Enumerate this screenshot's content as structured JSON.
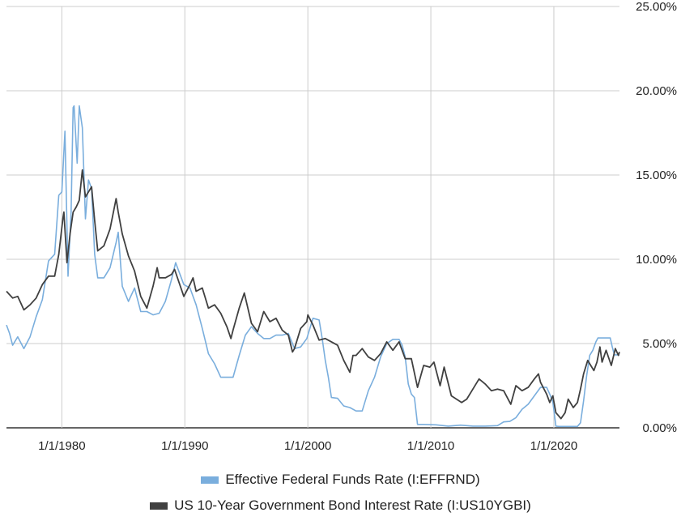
{
  "chart_data": {
    "type": "line",
    "x_range": [
      "1975-07",
      "2025-05"
    ],
    "x_ticks": [
      "1/1/1980",
      "1/1/1990",
      "1/1/2000",
      "1/1/2010",
      "1/1/2020"
    ],
    "y_ticks": [
      "0.00%",
      "5.00%",
      "10.00%",
      "15.00%",
      "20.00%",
      "25.00%"
    ],
    "ylim": [
      0,
      25
    ],
    "y_axis_position": "right",
    "grid": true,
    "legend": "bottom",
    "series": [
      {
        "name": "Effective Federal Funds Rate (I:EFFRND)",
        "color": "#7aaedd",
        "points": [
          [
            "1975-07",
            6.1
          ],
          [
            "1975-10",
            5.6
          ],
          [
            "1976-01",
            4.9
          ],
          [
            "1976-06",
            5.4
          ],
          [
            "1976-12",
            4.7
          ],
          [
            "1977-06",
            5.4
          ],
          [
            "1977-12",
            6.6
          ],
          [
            "1978-06",
            7.6
          ],
          [
            "1978-12",
            9.9
          ],
          [
            "1979-06",
            10.3
          ],
          [
            "1979-10",
            13.8
          ],
          [
            "1980-01",
            14.0
          ],
          [
            "1980-04",
            17.6
          ],
          [
            "1980-07",
            9.0
          ],
          [
            "1980-10",
            12.8
          ],
          [
            "1980-12",
            19.0
          ],
          [
            "1981-01",
            19.1
          ],
          [
            "1981-04",
            15.7
          ],
          [
            "1981-06",
            19.1
          ],
          [
            "1981-09",
            17.8
          ],
          [
            "1981-12",
            12.4
          ],
          [
            "1982-03",
            14.7
          ],
          [
            "1982-06",
            14.2
          ],
          [
            "1982-09",
            10.3
          ],
          [
            "1982-12",
            8.9
          ],
          [
            "1983-06",
            8.9
          ],
          [
            "1983-12",
            9.5
          ],
          [
            "1984-06",
            11.0
          ],
          [
            "1984-08",
            11.6
          ],
          [
            "1984-12",
            8.4
          ],
          [
            "1985-06",
            7.5
          ],
          [
            "1985-12",
            8.3
          ],
          [
            "1986-06",
            6.9
          ],
          [
            "1986-12",
            6.9
          ],
          [
            "1987-06",
            6.7
          ],
          [
            "1987-12",
            6.8
          ],
          [
            "1988-06",
            7.5
          ],
          [
            "1988-12",
            8.8
          ],
          [
            "1989-04",
            9.8
          ],
          [
            "1989-12",
            8.5
          ],
          [
            "1990-06",
            8.3
          ],
          [
            "1990-12",
            7.3
          ],
          [
            "1991-06",
            5.9
          ],
          [
            "1991-12",
            4.4
          ],
          [
            "1992-06",
            3.8
          ],
          [
            "1992-12",
            3.0
          ],
          [
            "1993-06",
            3.0
          ],
          [
            "1993-12",
            3.0
          ],
          [
            "1994-06",
            4.3
          ],
          [
            "1994-12",
            5.5
          ],
          [
            "1995-06",
            6.0
          ],
          [
            "1995-12",
            5.6
          ],
          [
            "1996-06",
            5.3
          ],
          [
            "1996-12",
            5.3
          ],
          [
            "1997-06",
            5.5
          ],
          [
            "1997-12",
            5.5
          ],
          [
            "1998-06",
            5.6
          ],
          [
            "1998-12",
            4.7
          ],
          [
            "1999-06",
            4.8
          ],
          [
            "1999-12",
            5.3
          ],
          [
            "2000-06",
            6.5
          ],
          [
            "2000-12",
            6.4
          ],
          [
            "2001-03",
            5.3
          ],
          [
            "2001-06",
            4.0
          ],
          [
            "2001-09",
            3.0
          ],
          [
            "2001-12",
            1.8
          ],
          [
            "2002-06",
            1.75
          ],
          [
            "2002-12",
            1.3
          ],
          [
            "2003-06",
            1.2
          ],
          [
            "2003-12",
            1.0
          ],
          [
            "2004-06",
            1.0
          ],
          [
            "2004-12",
            2.2
          ],
          [
            "2005-06",
            3.0
          ],
          [
            "2005-12",
            4.2
          ],
          [
            "2006-06",
            5.0
          ],
          [
            "2006-12",
            5.25
          ],
          [
            "2007-06",
            5.25
          ],
          [
            "2007-09",
            4.9
          ],
          [
            "2007-12",
            4.2
          ],
          [
            "2008-03",
            2.6
          ],
          [
            "2008-06",
            2.0
          ],
          [
            "2008-09",
            1.8
          ],
          [
            "2008-12",
            0.2
          ],
          [
            "2009-06",
            0.2
          ],
          [
            "2010-06",
            0.18
          ],
          [
            "2011-06",
            0.1
          ],
          [
            "2012-06",
            0.16
          ],
          [
            "2013-06",
            0.1
          ],
          [
            "2014-06",
            0.1
          ],
          [
            "2015-06",
            0.13
          ],
          [
            "2015-12",
            0.35
          ],
          [
            "2016-06",
            0.38
          ],
          [
            "2016-12",
            0.6
          ],
          [
            "2017-06",
            1.1
          ],
          [
            "2017-12",
            1.4
          ],
          [
            "2018-06",
            1.9
          ],
          [
            "2018-12",
            2.4
          ],
          [
            "2019-06",
            2.4
          ],
          [
            "2019-09",
            2.0
          ],
          [
            "2019-12",
            1.55
          ],
          [
            "2020-03",
            0.1
          ],
          [
            "2020-06",
            0.08
          ],
          [
            "2021-06",
            0.08
          ],
          [
            "2021-12",
            0.08
          ],
          [
            "2022-03",
            0.3
          ],
          [
            "2022-06",
            1.6
          ],
          [
            "2022-09",
            3.1
          ],
          [
            "2022-12",
            4.3
          ],
          [
            "2023-03",
            4.6
          ],
          [
            "2023-06",
            5.1
          ],
          [
            "2023-08",
            5.33
          ],
          [
            "2024-08",
            5.33
          ],
          [
            "2024-10",
            4.8
          ],
          [
            "2024-12",
            4.33
          ],
          [
            "2025-05",
            4.33
          ]
        ]
      },
      {
        "name": "US 10-Year Government Bond Interest Rate (I:US10YGBI)",
        "color": "#404040",
        "points": [
          [
            "1975-07",
            8.1
          ],
          [
            "1976-01",
            7.7
          ],
          [
            "1976-06",
            7.8
          ],
          [
            "1976-12",
            7.0
          ],
          [
            "1977-06",
            7.3
          ],
          [
            "1977-12",
            7.7
          ],
          [
            "1978-06",
            8.5
          ],
          [
            "1978-12",
            9.0
          ],
          [
            "1979-06",
            9.0
          ],
          [
            "1979-10",
            10.3
          ],
          [
            "1980-02",
            12.4
          ],
          [
            "1980-03",
            12.8
          ],
          [
            "1980-06",
            9.8
          ],
          [
            "1980-09",
            11.5
          ],
          [
            "1980-12",
            12.8
          ],
          [
            "1981-03",
            13.1
          ],
          [
            "1981-06",
            13.5
          ],
          [
            "1981-09",
            15.3
          ],
          [
            "1981-12",
            13.7
          ],
          [
            "1982-03",
            14.0
          ],
          [
            "1982-06",
            14.3
          ],
          [
            "1982-09",
            12.3
          ],
          [
            "1982-12",
            10.5
          ],
          [
            "1983-06",
            10.8
          ],
          [
            "1983-12",
            11.8
          ],
          [
            "1984-06",
            13.6
          ],
          [
            "1984-08",
            12.8
          ],
          [
            "1984-12",
            11.5
          ],
          [
            "1985-06",
            10.2
          ],
          [
            "1985-12",
            9.3
          ],
          [
            "1986-06",
            7.8
          ],
          [
            "1986-12",
            7.1
          ],
          [
            "1987-06",
            8.4
          ],
          [
            "1987-10",
            9.5
          ],
          [
            "1987-12",
            8.9
          ],
          [
            "1988-06",
            8.9
          ],
          [
            "1988-12",
            9.1
          ],
          [
            "1989-03",
            9.4
          ],
          [
            "1989-12",
            7.8
          ],
          [
            "1990-06",
            8.5
          ],
          [
            "1990-09",
            8.9
          ],
          [
            "1990-12",
            8.1
          ],
          [
            "1991-06",
            8.3
          ],
          [
            "1991-12",
            7.1
          ],
          [
            "1992-06",
            7.3
          ],
          [
            "1992-12",
            6.8
          ],
          [
            "1993-06",
            6.0
          ],
          [
            "1993-10",
            5.3
          ],
          [
            "1993-12",
            5.8
          ],
          [
            "1994-06",
            7.1
          ],
          [
            "1994-11",
            8.0
          ],
          [
            "1995-06",
            6.2
          ],
          [
            "1995-12",
            5.7
          ],
          [
            "1996-06",
            6.9
          ],
          [
            "1996-12",
            6.3
          ],
          [
            "1997-06",
            6.5
          ],
          [
            "1997-12",
            5.8
          ],
          [
            "1998-06",
            5.5
          ],
          [
            "1998-10",
            4.5
          ],
          [
            "1998-12",
            4.7
          ],
          [
            "1999-06",
            5.9
          ],
          [
            "1999-12",
            6.3
          ],
          [
            "2000-01",
            6.7
          ],
          [
            "2000-06",
            6.1
          ],
          [
            "2000-12",
            5.2
          ],
          [
            "2001-06",
            5.3
          ],
          [
            "2001-12",
            5.1
          ],
          [
            "2002-06",
            4.9
          ],
          [
            "2002-12",
            4.0
          ],
          [
            "2003-06",
            3.3
          ],
          [
            "2003-09",
            4.3
          ],
          [
            "2003-12",
            4.3
          ],
          [
            "2004-06",
            4.7
          ],
          [
            "2004-12",
            4.2
          ],
          [
            "2005-06",
            4.0
          ],
          [
            "2005-12",
            4.4
          ],
          [
            "2006-06",
            5.1
          ],
          [
            "2006-12",
            4.6
          ],
          [
            "2007-06",
            5.1
          ],
          [
            "2007-12",
            4.1
          ],
          [
            "2008-06",
            4.1
          ],
          [
            "2008-12",
            2.4
          ],
          [
            "2009-06",
            3.7
          ],
          [
            "2009-12",
            3.6
          ],
          [
            "2010-04",
            3.9
          ],
          [
            "2010-10",
            2.5
          ],
          [
            "2011-02",
            3.6
          ],
          [
            "2011-09",
            1.9
          ],
          [
            "2012-07",
            1.5
          ],
          [
            "2012-12",
            1.7
          ],
          [
            "2013-06",
            2.3
          ],
          [
            "2013-12",
            2.9
          ],
          [
            "2014-06",
            2.6
          ],
          [
            "2014-12",
            2.2
          ],
          [
            "2015-06",
            2.3
          ],
          [
            "2015-12",
            2.2
          ],
          [
            "2016-07",
            1.4
          ],
          [
            "2016-12",
            2.5
          ],
          [
            "2017-06",
            2.2
          ],
          [
            "2017-12",
            2.4
          ],
          [
            "2018-06",
            2.9
          ],
          [
            "2018-10",
            3.2
          ],
          [
            "2018-12",
            2.7
          ],
          [
            "2019-06",
            2.0
          ],
          [
            "2019-09",
            1.5
          ],
          [
            "2019-12",
            1.9
          ],
          [
            "2020-03",
            0.9
          ],
          [
            "2020-08",
            0.55
          ],
          [
            "2020-12",
            0.9
          ],
          [
            "2021-03",
            1.7
          ],
          [
            "2021-08",
            1.2
          ],
          [
            "2021-12",
            1.5
          ],
          [
            "2022-03",
            2.3
          ],
          [
            "2022-06",
            3.2
          ],
          [
            "2022-10",
            4.0
          ],
          [
            "2022-12",
            3.8
          ],
          [
            "2023-04",
            3.4
          ],
          [
            "2023-07",
            3.9
          ],
          [
            "2023-10",
            4.8
          ],
          [
            "2023-12",
            3.9
          ],
          [
            "2024-04",
            4.6
          ],
          [
            "2024-09",
            3.7
          ],
          [
            "2025-01",
            4.7
          ],
          [
            "2025-04",
            4.3
          ],
          [
            "2025-05",
            4.5
          ]
        ]
      }
    ]
  }
}
